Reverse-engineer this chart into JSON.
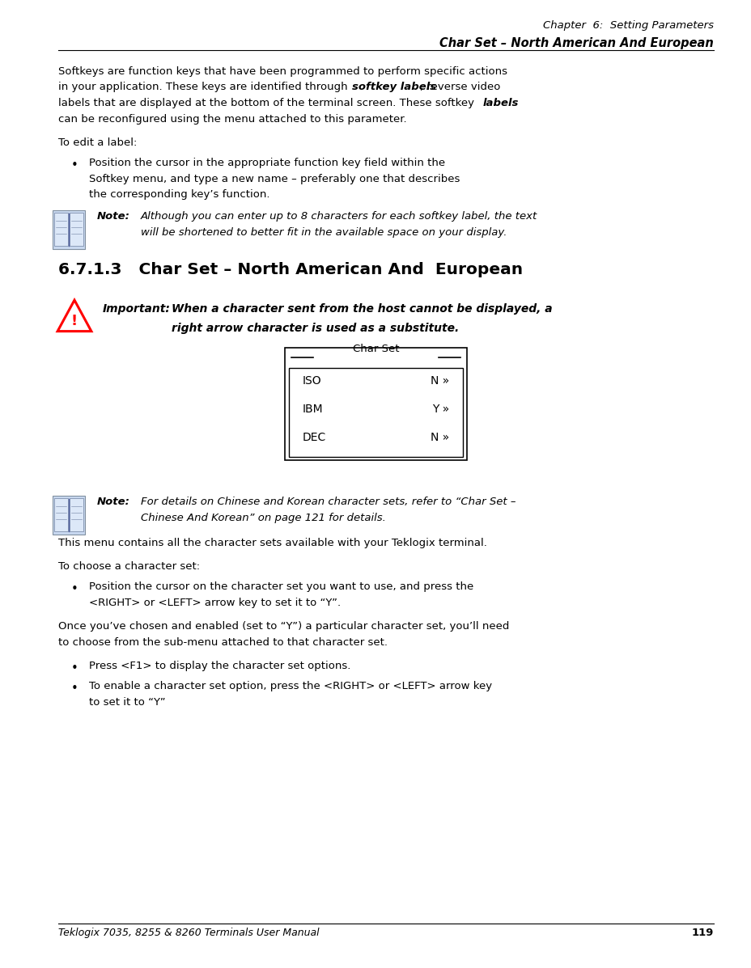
{
  "page_width": 9.29,
  "page_height": 11.97,
  "dpi": 100,
  "bg_color": "#ffffff",
  "header_line1": "Chapter  6:  Setting Parameters",
  "header_line2": "Char Set – North American And European",
  "footer_text": "Teklogix 7035, 8255 & 8260 Terminals User Manual",
  "footer_page": "119",
  "section_heading": "6.7.1.3   Char Set – North American And  European",
  "note1_label": "Note:",
  "note1_line1": "Although you can enter up to 8 characters for each softkey label, the text",
  "note1_line2": "will be shortened to better fit in the available space on your display.",
  "important_label": "Important:",
  "important_line1": "When a character sent from the host cannot be displayed, a",
  "important_line2": "right arrow character is used as a substitute.",
  "charset_box_title": "Char Set",
  "charset_rows": [
    [
      "ISO",
      "N »"
    ],
    [
      "IBM",
      "Y »"
    ],
    [
      "DEC",
      "N »"
    ]
  ],
  "note2_label": "Note:",
  "note2_line1": "For details on Chinese and Korean character sets, refer to “Char Set –",
  "note2_line2": "Chinese And Korean” on page 121 for details.",
  "para2": "This menu contains all the character sets available with your Teklogix terminal.",
  "to_choose": "To choose a character set:",
  "bullet2_line1": "Position the cursor on the character set you want to use, and press the",
  "bullet2_line2": "<RIGHT> or <LEFT> arrow key to set it to “Y”.",
  "para3_line1": "Once you’ve chosen and enabled (set to “Y”) a particular character set, you’ll need",
  "para3_line2": "to choose from the sub-menu attached to that character set.",
  "bullet3": "Press <F1> to display the character set options.",
  "bullet4_line1": "To enable a character set option, press the <RIGHT> or <LEFT> arrow key",
  "bullet4_line2": "to set it to “Y”"
}
